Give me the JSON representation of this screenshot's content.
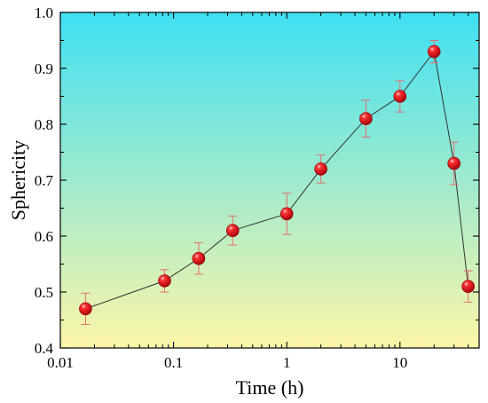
{
  "chart_data": {
    "type": "scatter",
    "xlabel": "Time (h)",
    "ylabel": "Sphericity",
    "xscale": "log",
    "xlim": [
      0.01,
      50
    ],
    "ylim": [
      0.4,
      1.0
    ],
    "x_ticks": [
      0.01,
      0.1,
      1,
      10
    ],
    "x_tick_labels": [
      "0.01",
      "0.1",
      "1",
      "10"
    ],
    "y_ticks": [
      0.4,
      0.5,
      0.6,
      0.7,
      0.8,
      0.9,
      1.0
    ],
    "y_tick_labels": [
      "0.4",
      "0.5",
      "0.6",
      "0.7",
      "0.8",
      "0.9",
      "1.0"
    ],
    "background_gradient": [
      "#3fe0f3",
      "#fdf5a8"
    ],
    "marker_color": "#e8101a",
    "line_color": "#333333",
    "errorbar_color": "#e0706a",
    "series": [
      {
        "x": [
          0.0167,
          0.0833,
          0.1667,
          0.333,
          1,
          2,
          5,
          10,
          20,
          30,
          40
        ],
        "y": [
          0.47,
          0.52,
          0.56,
          0.61,
          0.64,
          0.72,
          0.81,
          0.85,
          0.93,
          0.73,
          0.51
        ],
        "yerr": [
          0.028,
          0.02,
          0.028,
          0.026,
          0.037,
          0.025,
          0.033,
          0.028,
          0.02,
          0.038,
          0.028
        ]
      }
    ]
  }
}
